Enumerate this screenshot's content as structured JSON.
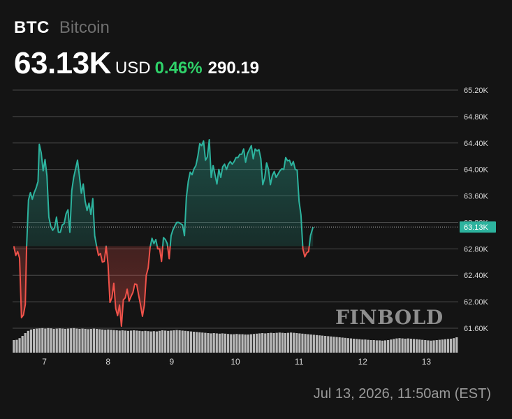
{
  "header": {
    "ticker": "BTC",
    "name": "Bitcoin",
    "price": "63.13K",
    "currency": "USD",
    "change_pct": "0.46%",
    "change_abs": "290.19"
  },
  "footer": {
    "date": "Jul 13, 2026, 11:50am (EST)"
  },
  "watermark": "FINBOLD",
  "colors": {
    "background": "#141414",
    "up": "#2db39e",
    "down": "#f0524a",
    "grid": "#4a4a4a",
    "volume": "#c8c8c8",
    "green_text": "#2fd36a"
  },
  "chart_data": {
    "type": "line",
    "title": "BTC Bitcoin",
    "xlabel": "",
    "ylabel": "",
    "reference_price": 62840,
    "current_value": 63130,
    "current_label": "63.13K",
    "ylim": [
      61600,
      65200
    ],
    "xlim": [
      6.5,
      13.5
    ],
    "yticks": [
      61600,
      62000,
      62400,
      62800,
      63200,
      63600,
      64000,
      64400,
      64800,
      65200
    ],
    "ytick_labels": [
      "61.60K",
      "62.00K",
      "62.40K",
      "62.80K",
      "63.20K",
      "63.60K",
      "64.00K",
      "64.40K",
      "64.80K",
      "65.20K"
    ],
    "xticks": [
      7,
      8,
      9,
      10,
      11,
      12,
      13
    ],
    "xtick_labels": [
      "7",
      "8",
      "9",
      "10",
      "11",
      "12",
      "13"
    ],
    "grid": true,
    "series": [
      {
        "values": [
          [
            6.52,
            62840
          ],
          [
            6.55,
            62700
          ],
          [
            6.58,
            62760
          ],
          [
            6.61,
            62660
          ],
          [
            6.64,
            61760
          ],
          [
            6.67,
            61800
          ],
          [
            6.7,
            61960
          ],
          [
            6.72,
            62820
          ],
          [
            6.75,
            63540
          ],
          [
            6.78,
            63650
          ],
          [
            6.81,
            63550
          ],
          [
            6.84,
            63650
          ],
          [
            6.87,
            63720
          ],
          [
            6.9,
            63820
          ],
          [
            6.92,
            64380
          ],
          [
            6.95,
            64250
          ],
          [
            6.98,
            63980
          ],
          [
            7.01,
            64150
          ],
          [
            7.04,
            63900
          ],
          [
            7.07,
            63280
          ],
          [
            7.1,
            63140
          ],
          [
            7.13,
            63080
          ],
          [
            7.16,
            63120
          ],
          [
            7.19,
            63280
          ],
          [
            7.22,
            63050
          ],
          [
            7.25,
            63050
          ],
          [
            7.28,
            63160
          ],
          [
            7.31,
            63180
          ],
          [
            7.34,
            63330
          ],
          [
            7.37,
            63390
          ],
          [
            7.4,
            63050
          ],
          [
            7.43,
            63680
          ],
          [
            7.46,
            63880
          ],
          [
            7.49,
            64010
          ],
          [
            7.52,
            64140
          ],
          [
            7.55,
            63900
          ],
          [
            7.58,
            63640
          ],
          [
            7.61,
            63780
          ],
          [
            7.64,
            63520
          ],
          [
            7.67,
            63380
          ],
          [
            7.7,
            63490
          ],
          [
            7.73,
            63320
          ],
          [
            7.76,
            63560
          ],
          [
            7.79,
            63000
          ],
          [
            7.82,
            62840
          ],
          [
            7.85,
            62700
          ],
          [
            7.88,
            62730
          ],
          [
            7.91,
            62600
          ],
          [
            7.94,
            62610
          ],
          [
            7.97,
            62840
          ],
          [
            8.0,
            62560
          ],
          [
            8.03,
            61990
          ],
          [
            8.06,
            62060
          ],
          [
            8.09,
            62280
          ],
          [
            8.12,
            61900
          ],
          [
            8.15,
            61790
          ],
          [
            8.18,
            61950
          ],
          [
            8.21,
            61630
          ],
          [
            8.24,
            62030
          ],
          [
            8.27,
            62060
          ],
          [
            8.3,
            62190
          ],
          [
            8.33,
            62010
          ],
          [
            8.36,
            62080
          ],
          [
            8.39,
            62140
          ],
          [
            8.42,
            62270
          ],
          [
            8.45,
            62260
          ],
          [
            8.48,
            62100
          ],
          [
            8.51,
            61950
          ],
          [
            8.54,
            61780
          ],
          [
            8.57,
            61950
          ],
          [
            8.6,
            62400
          ],
          [
            8.63,
            62510
          ],
          [
            8.66,
            62820
          ],
          [
            8.69,
            62960
          ],
          [
            8.72,
            62880
          ],
          [
            8.75,
            62940
          ],
          [
            8.78,
            62800
          ],
          [
            8.81,
            62800
          ],
          [
            8.84,
            62610
          ],
          [
            8.87,
            62970
          ],
          [
            8.9,
            62940
          ],
          [
            8.93,
            62880
          ],
          [
            8.96,
            62650
          ],
          [
            8.99,
            63000
          ],
          [
            9.02,
            63090
          ],
          [
            9.05,
            63150
          ],
          [
            9.08,
            63200
          ],
          [
            9.11,
            63200
          ],
          [
            9.14,
            63180
          ],
          [
            9.17,
            63160
          ],
          [
            9.2,
            63000
          ],
          [
            9.23,
            63580
          ],
          [
            9.26,
            63820
          ],
          [
            9.29,
            63960
          ],
          [
            9.32,
            63920
          ],
          [
            9.35,
            64010
          ],
          [
            9.38,
            64060
          ],
          [
            9.41,
            64200
          ],
          [
            9.44,
            64390
          ],
          [
            9.47,
            64360
          ],
          [
            9.5,
            64430
          ],
          [
            9.53,
            64140
          ],
          [
            9.56,
            64190
          ],
          [
            9.59,
            64450
          ],
          [
            9.62,
            63880
          ],
          [
            9.65,
            64060
          ],
          [
            9.68,
            63920
          ],
          [
            9.71,
            63780
          ],
          [
            9.74,
            64000
          ],
          [
            9.77,
            63880
          ],
          [
            9.8,
            64040
          ],
          [
            9.83,
            64080
          ],
          [
            9.86,
            64000
          ],
          [
            9.89,
            64080
          ],
          [
            9.92,
            64120
          ],
          [
            9.95,
            64080
          ],
          [
            9.98,
            64120
          ],
          [
            10.01,
            64180
          ],
          [
            10.04,
            64180
          ],
          [
            10.07,
            64230
          ],
          [
            10.1,
            64230
          ],
          [
            10.13,
            64310
          ],
          [
            10.16,
            64110
          ],
          [
            10.19,
            64240
          ],
          [
            10.22,
            64300
          ],
          [
            10.25,
            64360
          ],
          [
            10.28,
            64160
          ],
          [
            10.31,
            64310
          ],
          [
            10.34,
            64280
          ],
          [
            10.37,
            64300
          ],
          [
            10.4,
            64160
          ],
          [
            10.43,
            63770
          ],
          [
            10.46,
            63870
          ],
          [
            10.49,
            64100
          ],
          [
            10.52,
            64000
          ],
          [
            10.55,
            63770
          ],
          [
            10.58,
            63910
          ],
          [
            10.61,
            63970
          ],
          [
            10.64,
            63880
          ],
          [
            10.67,
            63930
          ],
          [
            10.7,
            63980
          ],
          [
            10.73,
            64010
          ],
          [
            10.76,
            64000
          ],
          [
            10.79,
            64180
          ],
          [
            10.82,
            64130
          ],
          [
            10.85,
            64140
          ],
          [
            10.88,
            64060
          ],
          [
            10.91,
            64120
          ],
          [
            10.94,
            64000
          ],
          [
            10.97,
            63990
          ],
          [
            11.0,
            63520
          ],
          [
            11.03,
            63310
          ],
          [
            11.06,
            62800
          ],
          [
            11.09,
            62680
          ],
          [
            11.12,
            62740
          ],
          [
            11.15,
            62760
          ],
          [
            11.18,
            63000
          ],
          [
            11.22,
            63130
          ]
        ]
      }
    ],
    "volume": [
      0.45,
      0.46,
      0.52,
      0.6,
      0.7,
      0.78,
      0.83,
      0.85,
      0.86,
      0.87,
      0.88,
      0.86,
      0.88,
      0.87,
      0.85,
      0.86,
      0.87,
      0.86,
      0.85,
      0.86,
      0.87,
      0.88,
      0.86,
      0.85,
      0.86,
      0.85,
      0.84,
      0.85,
      0.86,
      0.85,
      0.84,
      0.83,
      0.82,
      0.83,
      0.82,
      0.81,
      0.8,
      0.79,
      0.8,
      0.79,
      0.78,
      0.79,
      0.8,
      0.79,
      0.78,
      0.77,
      0.78,
      0.77,
      0.76,
      0.77,
      0.76,
      0.78,
      0.8,
      0.79,
      0.78,
      0.79,
      0.8,
      0.81,
      0.8,
      0.79,
      0.78,
      0.77,
      0.76,
      0.75,
      0.74,
      0.73,
      0.72,
      0.71,
      0.7,
      0.69,
      0.7,
      0.69,
      0.68,
      0.69,
      0.68,
      0.67,
      0.66,
      0.66,
      0.67,
      0.66,
      0.66,
      0.65,
      0.65,
      0.66,
      0.67,
      0.68,
      0.69,
      0.7,
      0.69,
      0.7,
      0.71,
      0.7,
      0.71,
      0.72,
      0.71,
      0.7,
      0.71,
      0.72,
      0.71,
      0.7,
      0.69,
      0.68,
      0.67,
      0.66,
      0.65,
      0.64,
      0.63,
      0.62,
      0.61,
      0.6,
      0.59,
      0.58,
      0.57,
      0.56,
      0.55,
      0.54,
      0.53,
      0.52,
      0.51,
      0.5,
      0.49,
      0.48,
      0.47,
      0.47,
      0.46,
      0.45,
      0.45,
      0.44,
      0.44,
      0.43,
      0.44,
      0.45,
      0.47,
      0.49,
      0.51,
      0.52,
      0.51,
      0.5,
      0.51,
      0.5,
      0.49,
      0.48,
      0.47,
      0.46,
      0.45,
      0.44,
      0.43,
      0.44,
      0.45,
      0.46,
      0.47,
      0.48,
      0.49,
      0.5,
      0.52,
      0.55
    ]
  }
}
